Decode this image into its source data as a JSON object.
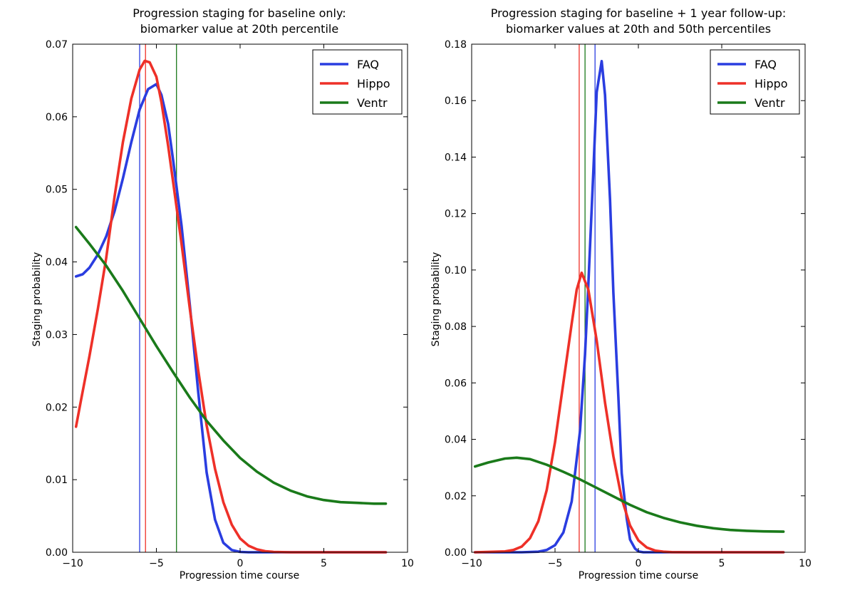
{
  "chart_data": [
    {
      "type": "line",
      "title_line1": "Progression staging for baseline only:",
      "title_line2": "biomarker value at 20th percentile",
      "xlabel": "Progression time course",
      "ylabel": "Staging probability",
      "xlim": [
        -10,
        10
      ],
      "ylim": [
        0,
        0.07
      ],
      "xticks": [
        -10,
        -5,
        0,
        5,
        10
      ],
      "xtick_labels": [
        "−10",
        "−5",
        "0",
        "5",
        "10"
      ],
      "yticks": [
        0.0,
        0.01,
        0.02,
        0.03,
        0.04,
        0.05,
        0.06,
        0.07
      ],
      "ytick_labels": [
        "0.00",
        "0.01",
        "0.02",
        "0.03",
        "0.04",
        "0.05",
        "0.06",
        "0.07"
      ],
      "grid": false,
      "legend_position": "top-right",
      "series": [
        {
          "name": "FAQ",
          "color": "#2a3de0",
          "x": [
            -9.8,
            -9.4,
            -9.0,
            -8.5,
            -8.0,
            -7.5,
            -7.0,
            -6.5,
            -6.0,
            -5.5,
            -5.0,
            -4.7,
            -4.3,
            -4.0,
            -3.5,
            -3.0,
            -2.5,
            -2.0,
            -1.5,
            -1.0,
            -0.5,
            0.0,
            0.5,
            1.0,
            2.0,
            4.0,
            6.0,
            8.7
          ],
          "y": [
            0.038,
            0.0383,
            0.0392,
            0.041,
            0.0435,
            0.047,
            0.0515,
            0.0565,
            0.061,
            0.0638,
            0.0645,
            0.063,
            0.059,
            0.054,
            0.045,
            0.034,
            0.022,
            0.011,
            0.0045,
            0.0013,
            0.0003,
            5e-05,
            0.0,
            0.0,
            0.0,
            0.0,
            0.0,
            0.0
          ]
        },
        {
          "name": "Hippo",
          "color": "#ee3028",
          "x": [
            -9.8,
            -9.5,
            -9.0,
            -8.5,
            -8.0,
            -7.5,
            -7.0,
            -6.5,
            -6.0,
            -5.7,
            -5.4,
            -5.0,
            -4.7,
            -4.3,
            -4.0,
            -3.5,
            -3.0,
            -2.5,
            -2.0,
            -1.5,
            -1.0,
            -0.5,
            0.0,
            0.5,
            1.0,
            1.5,
            2.0,
            3.0,
            4.0,
            6.0,
            8.7
          ],
          "y": [
            0.0173,
            0.021,
            0.027,
            0.0335,
            0.0405,
            0.049,
            0.0565,
            0.0625,
            0.0665,
            0.0677,
            0.0675,
            0.0655,
            0.062,
            0.056,
            0.051,
            0.0425,
            0.0335,
            0.025,
            0.0175,
            0.0115,
            0.0069,
            0.0038,
            0.0019,
            0.0009,
            0.0004,
            0.00015,
            5e-05,
            0.0,
            0.0,
            0.0,
            0.0
          ]
        },
        {
          "name": "Ventr",
          "color": "#1a7a1a",
          "x": [
            -9.8,
            -9.0,
            -8.0,
            -7.0,
            -6.0,
            -5.0,
            -4.0,
            -3.0,
            -2.0,
            -1.0,
            0.0,
            1.0,
            2.0,
            3.0,
            4.0,
            5.0,
            6.0,
            7.0,
            8.0,
            8.7
          ],
          "y": [
            0.0448,
            0.0425,
            0.0395,
            0.036,
            0.0322,
            0.0284,
            0.0248,
            0.0213,
            0.0181,
            0.0154,
            0.013,
            0.0111,
            0.0096,
            0.0085,
            0.0077,
            0.0072,
            0.0069,
            0.0068,
            0.0067,
            0.0067
          ]
        }
      ],
      "vertical_lines": [
        {
          "x": -6.0,
          "color": "#2a3de0"
        },
        {
          "x": -5.65,
          "color": "#ee3028"
        },
        {
          "x": -3.8,
          "color": "#1a7a1a"
        }
      ]
    },
    {
      "type": "line",
      "title_line1": "Progression staging for baseline + 1 year follow-up:",
      "title_line2": "biomarker values at 20th and 50th percentiles",
      "xlabel": "Progression time course",
      "ylabel": "Staging probability",
      "xlim": [
        -10,
        10
      ],
      "ylim": [
        0,
        0.18
      ],
      "xticks": [
        -10,
        -5,
        0,
        5,
        10
      ],
      "xtick_labels": [
        "−10",
        "−5",
        "0",
        "5",
        "10"
      ],
      "yticks": [
        0.0,
        0.02,
        0.04,
        0.06,
        0.08,
        0.1,
        0.12,
        0.14,
        0.16,
        0.18
      ],
      "ytick_labels": [
        "0.00",
        "0.02",
        "0.04",
        "0.06",
        "0.08",
        "0.10",
        "0.12",
        "0.14",
        "0.16",
        "0.18"
      ],
      "grid": false,
      "legend_position": "top-right",
      "series": [
        {
          "name": "FAQ",
          "color": "#2a3de0",
          "x": [
            -9.8,
            -8.0,
            -7.0,
            -6.0,
            -5.5,
            -5.0,
            -4.5,
            -4.0,
            -3.5,
            -3.2,
            -3.0,
            -2.7,
            -2.5,
            -2.2,
            -2.0,
            -1.7,
            -1.5,
            -1.2,
            -1.0,
            -0.7,
            -0.5,
            -0.2,
            0.0,
            0.3,
            1.0,
            3.0,
            6.0,
            8.7
          ],
          "y": [
            0.0,
            0.0,
            0.0,
            0.0002,
            0.0008,
            0.0025,
            0.007,
            0.018,
            0.043,
            0.07,
            0.095,
            0.135,
            0.163,
            0.174,
            0.162,
            0.125,
            0.092,
            0.055,
            0.028,
            0.012,
            0.0045,
            0.0013,
            0.0003,
            0.0,
            0.0,
            0.0,
            0.0,
            0.0
          ]
        },
        {
          "name": "Hippo",
          "color": "#ee3028",
          "x": [
            -9.8,
            -8.0,
            -7.5,
            -7.0,
            -6.5,
            -6.0,
            -5.5,
            -5.0,
            -4.5,
            -4.0,
            -3.7,
            -3.4,
            -3.0,
            -2.5,
            -2.0,
            -1.5,
            -1.0,
            -0.5,
            0.0,
            0.5,
            1.0,
            1.5,
            2.0,
            3.0,
            5.0,
            8.7
          ],
          "y": [
            0.0,
            0.0003,
            0.0008,
            0.002,
            0.005,
            0.011,
            0.022,
            0.039,
            0.06,
            0.081,
            0.093,
            0.099,
            0.093,
            0.075,
            0.053,
            0.034,
            0.019,
            0.0095,
            0.0042,
            0.0017,
            0.0006,
            0.0002,
            5e-05,
            0.0,
            0.0,
            0.0
          ]
        },
        {
          "name": "Ventr",
          "color": "#1a7a1a",
          "x": [
            -9.8,
            -9.0,
            -8.0,
            -7.3,
            -6.5,
            -5.5,
            -4.5,
            -3.5,
            -2.5,
            -1.5,
            -0.5,
            0.5,
            1.5,
            2.5,
            3.5,
            4.5,
            5.5,
            6.5,
            7.5,
            8.7
          ],
          "y": [
            0.0304,
            0.0318,
            0.0332,
            0.0335,
            0.033,
            0.031,
            0.0285,
            0.0258,
            0.0228,
            0.0198,
            0.0168,
            0.0142,
            0.0122,
            0.0106,
            0.0094,
            0.0085,
            0.0079,
            0.0076,
            0.0074,
            0.0073
          ]
        }
      ],
      "vertical_lines": [
        {
          "x": -2.6,
          "color": "#2a3de0"
        },
        {
          "x": -3.55,
          "color": "#ee3028"
        },
        {
          "x": -3.2,
          "color": "#1a7a1a"
        }
      ]
    }
  ]
}
